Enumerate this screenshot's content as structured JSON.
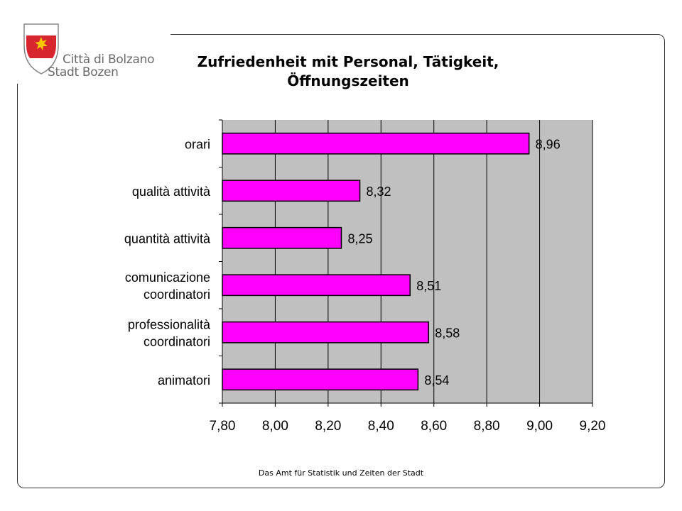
{
  "logo": {
    "name_it": "Città di Bolzano",
    "name_de": "Stadt Bozen",
    "colors": {
      "shield_red": "#d8262e",
      "star": "#f6c800",
      "outline": "#888888"
    }
  },
  "footer": "Das Amt für Statistik und Zeiten der Stadt",
  "chart_data": {
    "type": "bar",
    "orientation": "horizontal",
    "title": "Zufriedenheit mit Personal, Tätigkeit, Öffnungszeiten",
    "categories": [
      [
        "orari"
      ],
      [
        "qualità attività"
      ],
      [
        "quantità attività"
      ],
      [
        "comunicazione",
        "coordinatori"
      ],
      [
        "professionalità",
        "coordinatori"
      ],
      [
        "animatori"
      ]
    ],
    "series": [
      {
        "values": [
          8.96,
          8.32,
          8.25,
          8.51,
          8.58,
          8.54
        ]
      }
    ],
    "data_labels": [
      "8,96",
      "8,32",
      "8,25",
      "8,51",
      "8,58",
      "8,54"
    ],
    "xlim": [
      7.8,
      9.2
    ],
    "xticks": [
      7.8,
      8.0,
      8.2,
      8.4,
      8.6,
      8.8,
      9.0,
      9.2
    ],
    "xtick_labels": [
      "7,80",
      "8,00",
      "8,20",
      "8,40",
      "8,60",
      "8,80",
      "9,00",
      "9,20"
    ],
    "grid": true,
    "colors": {
      "bar": "#ff00ff",
      "plot_bg": "#c0c0c0",
      "gridline": "#000000"
    }
  }
}
